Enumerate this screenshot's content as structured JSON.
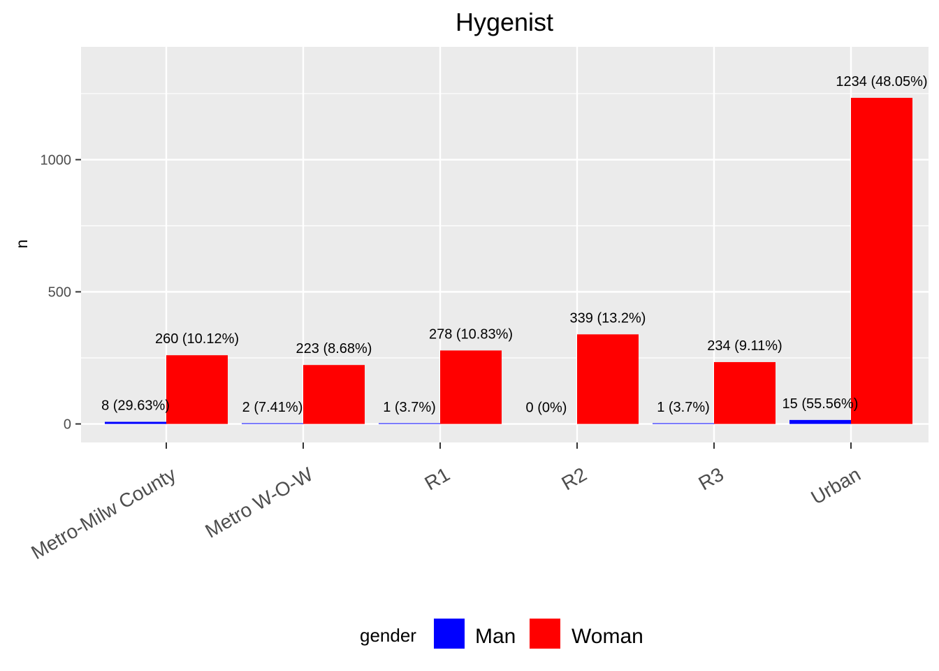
{
  "chart_data": {
    "type": "bar",
    "title": "Hygenist",
    "xlabel": "",
    "ylabel": "n",
    "ylim": [
      -70,
      1427
    ],
    "yticks": [
      0,
      500,
      1000
    ],
    "grid": true,
    "categories": [
      "Metro-Milw County",
      "Metro W-O-W",
      "R1",
      "R2",
      "R3",
      "Urban"
    ],
    "series": [
      {
        "name": "Man",
        "color": "#0000ff",
        "values": [
          8,
          2,
          1,
          0,
          1,
          15
        ],
        "labels": [
          "8 (29.63%)",
          "2 (7.41%)",
          "1 (3.7%)",
          "0 (0%)",
          "1 (3.7%)",
          "15 (55.56%)"
        ]
      },
      {
        "name": "Woman",
        "color": "#ff0000",
        "values": [
          260,
          223,
          278,
          339,
          234,
          1234
        ],
        "labels": [
          "260 (10.12%)",
          "223 (8.68%)",
          "278 (10.83%)",
          "339 (13.2%)",
          "234 (9.11%)",
          "1234 (48.05%)"
        ]
      }
    ],
    "legend": {
      "title": "gender",
      "position": "bottom"
    },
    "panel_background": "#ebebeb",
    "grid_color": "#ffffff"
  }
}
